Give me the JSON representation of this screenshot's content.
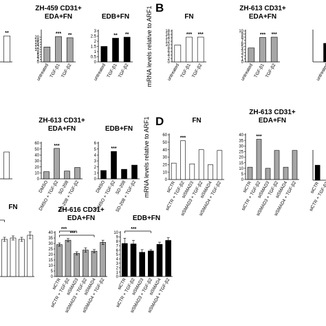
{
  "panel_letters": [
    "B",
    "D"
  ],
  "chart_data": [
    {
      "id": "r1c1",
      "type": "bar",
      "title": [
        "FN"
      ],
      "ylim": [
        0,
        25
      ],
      "yticks": [],
      "categories": [
        "",
        "",
        ""
      ],
      "series": [
        {
          "color": "#ffffff",
          "values": [
            null,
            null,
            21
          ]
        }
      ],
      "sig": [
        null,
        null,
        "**"
      ]
    },
    {
      "id": "r1c2",
      "type": "bar",
      "title": [
        "ZH-459 CD31+",
        "EDA+FN"
      ],
      "ylim": [
        0,
        25
      ],
      "yticks": [
        0,
        2,
        4,
        6,
        8,
        10,
        12,
        14,
        16,
        18,
        20
      ],
      "categories": [
        "untreated",
        "TGF-β1",
        "TGF-β2"
      ],
      "series": [
        {
          "color": "#a6a6a6",
          "values": [
            12,
            20.5,
            19.5
          ]
        }
      ],
      "sig": [
        null,
        "***",
        "**"
      ]
    },
    {
      "id": "r1c3",
      "type": "bar",
      "title": [
        "EDB+FN"
      ],
      "ylim": [
        0,
        3
      ],
      "yticks": [
        0,
        0.5,
        1,
        1.5,
        2,
        2.5,
        3
      ],
      "categories": [
        "untreated",
        "TGF-β1",
        "TGF-β2"
      ],
      "series": [
        {
          "color": "#000000",
          "values": [
            1.5,
            2.3,
            2.4
          ]
        }
      ],
      "sig": [
        null,
        "**",
        "**"
      ]
    },
    {
      "id": "r1c4",
      "type": "bar",
      "title": [
        "FN"
      ],
      "ylabel": "mRNA levels relative to ARF1",
      "ylim": [
        0,
        18
      ],
      "yticks": [
        0,
        2,
        4,
        6,
        8,
        10,
        12,
        14,
        16,
        18
      ],
      "categories": [
        "untreated",
        "TGF-β1",
        "TGF-β2"
      ],
      "series": [
        {
          "color": "#ffffff",
          "values": [
            9.8,
            14.4,
            14.4
          ]
        }
      ],
      "sig": [
        null,
        "***",
        "***"
      ]
    },
    {
      "id": "r1c5",
      "type": "bar",
      "title": [
        "ZH-613 CD31+",
        "EDA+FN"
      ],
      "ylim": [
        0,
        10
      ],
      "yticks": [
        0,
        1,
        2,
        3,
        4,
        5,
        6,
        7,
        8,
        9,
        10
      ],
      "categories": [
        "untreated",
        "TGF-β1",
        "TGF-β2"
      ],
      "series": [
        {
          "color": "#a6a6a6",
          "values": [
            4.5,
            7.9,
            8.0
          ]
        }
      ],
      "sig": [
        null,
        "***",
        "***"
      ]
    },
    {
      "id": "r1c6",
      "type": "bar",
      "title": [
        ""
      ],
      "ylim": [
        0,
        2
      ],
      "yticks": [],
      "categories": [
        "untreated"
      ],
      "series": [
        {
          "color": "#000000",
          "values": [
            1.2
          ]
        }
      ],
      "sig": [
        null
      ]
    },
    {
      "id": "r2c1",
      "type": "bar",
      "title": [
        "FN"
      ],
      "ylim": [
        0,
        40
      ],
      "yticks": [],
      "categories": [
        "",
        "",
        ""
      ],
      "series": [
        {
          "color": "#ffffff",
          "values": [
            null,
            22,
            30
          ]
        }
      ],
      "sig": [
        null,
        null,
        null
      ]
    },
    {
      "id": "r2c2",
      "type": "bar",
      "title": [
        "ZH-613 CD31+",
        "EDA+FN"
      ],
      "ylim": [
        0,
        60
      ],
      "yticks": [
        0,
        10,
        20,
        30,
        40,
        50,
        60
      ],
      "categories": [
        "DMSO",
        "DMSO + TGF-β2",
        "SD-208",
        "SD-208 + TGF-β2"
      ],
      "series": [
        {
          "color": "#a6a6a6",
          "values": [
            12,
            51,
            13,
            19
          ]
        }
      ],
      "sig": [
        null,
        "***",
        null,
        null
      ]
    },
    {
      "id": "r2c3",
      "type": "bar",
      "title": [
        "EDB+FN"
      ],
      "ylim": [
        0,
        6
      ],
      "yticks": [
        0,
        1,
        2,
        3,
        4,
        5,
        6
      ],
      "categories": [
        "DMSO",
        "DMSO + TGF-β2",
        "SD-208",
        "SD-208 + TGF-β2"
      ],
      "series": [
        {
          "color": "#000000",
          "values": [
            1.4,
            4.6,
            1.6,
            2.3
          ]
        }
      ],
      "sig": [
        null,
        "***",
        null,
        null
      ]
    },
    {
      "id": "r2c4",
      "type": "bar",
      "title": [
        "FN"
      ],
      "ylabel": "mRNA levels relative to ARF1",
      "ylim": [
        0,
        60
      ],
      "yticks": [
        0,
        10,
        20,
        30,
        40,
        50,
        60
      ],
      "categories": [
        "siCTR",
        "siCTR + TGF-β2",
        "siSMAD3",
        "siSMAD3 + TGF-β2",
        "siSMAD4",
        "siSMAD4 + TGF-β2"
      ],
      "series": [
        {
          "color": "#ffffff",
          "values": [
            22,
            52,
            21,
            40,
            20,
            39
          ]
        }
      ],
      "sig": [
        null,
        "***",
        null,
        null,
        null,
        null
      ]
    },
    {
      "id": "r2c5",
      "type": "bar",
      "title": [
        "ZH-613 CD31+",
        "EDA+FN"
      ],
      "ylim": [
        0,
        40
      ],
      "yticks": [
        0,
        5,
        10,
        15,
        20,
        25,
        30,
        35,
        40
      ],
      "categories": [
        "siCTR",
        "siCTR + TGF-β2",
        "siSMAD3",
        "siSMAD3 + TGF-β2",
        "siSMAD4",
        "siSMAD4 + TGF-β2"
      ],
      "series": [
        {
          "color": "#a6a6a6",
          "values": [
            11,
            36,
            10,
            26,
            11,
            26
          ]
        }
      ],
      "sig": [
        null,
        "***",
        null,
        null,
        null,
        null
      ]
    },
    {
      "id": "r2c6",
      "type": "bar",
      "title": [
        ""
      ],
      "ylim": [
        0,
        2.5
      ],
      "yticks": [],
      "categories": [
        "siCTR",
        "siCTR + TGF-β2",
        "siSMAD3"
      ],
      "series": [
        {
          "color": "#000000",
          "values": [
            1.3,
            null,
            null
          ]
        }
      ],
      "sig": [
        null,
        null,
        null
      ]
    },
    {
      "id": "r3c1",
      "type": "bar",
      "title": [
        "FN"
      ],
      "ylim": [
        0,
        40
      ],
      "yticks": [],
      "categories": [
        "",
        "",
        "",
        "",
        ""
      ],
      "series": [
        {
          "color": "#ffffff",
          "values": [
            null,
            27,
            28,
            27,
            30
          ],
          "errors": [
            null,
            1.5,
            1.5,
            1.5,
            2.5
          ]
        }
      ],
      "brackets": [
        {
          "from": 0,
          "to": 1,
          "label": ""
        }
      ]
    },
    {
      "id": "r3c2",
      "type": "bar",
      "title": [
        "ZH-616 CD31+",
        "EDA+FN"
      ],
      "ylim": [
        0,
        40
      ],
      "yticks": [
        0,
        5,
        10,
        15,
        20,
        25,
        30,
        35,
        40
      ],
      "categories": [
        "siCTR",
        "siCTR + TGF-β2",
        "siSMAD3",
        "siSMAD3 + TGF-β2",
        "siSMAD4",
        "siSMAD4 + TGF-β2"
      ],
      "series": [
        {
          "color": "#a6a6a6",
          "values": [
            29,
            33,
            21,
            24,
            23,
            31
          ],
          "errors": [
            1.5,
            1.5,
            1.5,
            2,
            1.5,
            2
          ]
        }
      ],
      "brackets": [
        {
          "from": 0,
          "to": 2,
          "label": "***"
        },
        {
          "from": 0,
          "to": 4,
          "label": "***"
        }
      ]
    },
    {
      "id": "r3c3",
      "type": "bar",
      "title": [
        "EDB+FN"
      ],
      "ylim": [
        0,
        10
      ],
      "yticks": [
        0,
        1,
        2,
        3,
        4,
        5,
        6,
        7,
        8,
        9,
        10
      ],
      "categories": [
        "siCTR",
        "siCTR + TGF-β2",
        "siSMAD3",
        "siSMAD3 + TGF-β2",
        "siSMAD4",
        "siSMAD4 + TGF-β2"
      ],
      "series": [
        {
          "color": "#000000",
          "values": [
            7.5,
            7.4,
            5.5,
            5.8,
            7.3,
            8.2
          ],
          "errors": [
            1.2,
            0.8,
            0.6,
            0.3,
            0.5,
            0.6
          ]
        }
      ],
      "brackets": [
        {
          "from": 0,
          "to": 3,
          "label": "***"
        }
      ]
    }
  ]
}
